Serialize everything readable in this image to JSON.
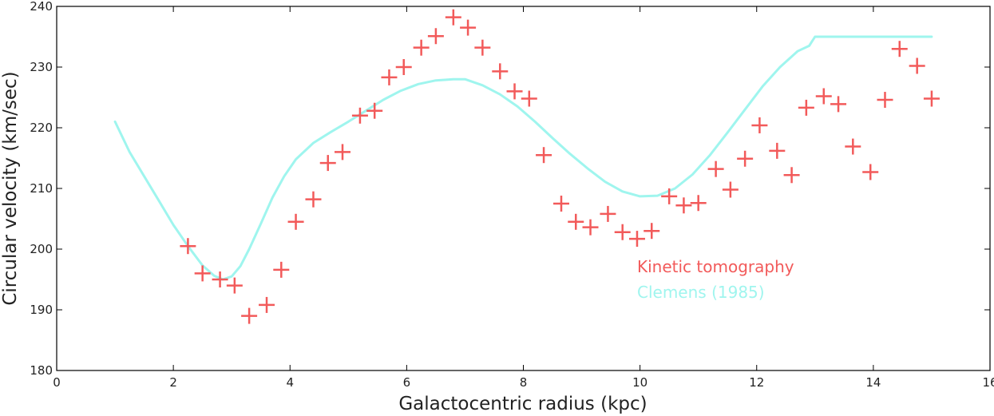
{
  "chart_data": {
    "type": "scatter",
    "title": "",
    "xlabel": "Galactocentric radius (kpc)",
    "ylabel": "Circular velocity (km/sec)",
    "xlim": [
      0,
      16
    ],
    "ylim": [
      180,
      240
    ],
    "xticks": [
      0,
      2,
      4,
      6,
      8,
      10,
      12,
      14,
      16
    ],
    "yticks": [
      180,
      190,
      200,
      210,
      220,
      230,
      240
    ],
    "grid": false,
    "legend_placement": "center-right",
    "series": [
      {
        "name": "Kinetic tomography",
        "kind": "scatter",
        "marker": "plus",
        "color": "#f25a5a",
        "x": [
          2.25,
          2.5,
          2.8,
          3.05,
          3.3,
          3.6,
          3.85,
          4.1,
          4.4,
          4.65,
          4.9,
          5.2,
          5.45,
          5.7,
          5.95,
          6.25,
          6.5,
          6.8,
          7.05,
          7.3,
          7.6,
          7.85,
          8.1,
          8.35,
          8.65,
          8.9,
          9.15,
          9.45,
          9.7,
          9.95,
          10.2,
          10.5,
          10.75,
          11.0,
          11.3,
          11.55,
          11.8,
          12.05,
          12.35,
          12.6,
          12.85,
          13.15,
          13.4,
          13.65,
          13.95,
          14.2,
          14.45,
          14.75,
          15.0
        ],
        "y": [
          200.5,
          196.0,
          195.0,
          194.0,
          189.0,
          190.8,
          196.6,
          204.5,
          208.2,
          214.2,
          216.0,
          222.0,
          222.8,
          228.3,
          230.0,
          233.2,
          235.1,
          238.2,
          236.5,
          233.2,
          229.3,
          226.0,
          224.8,
          215.5,
          207.5,
          204.5,
          203.6,
          205.8,
          202.8,
          201.7,
          203.0,
          208.7,
          207.2,
          207.6,
          213.2,
          209.8,
          214.9,
          220.4,
          216.2,
          212.2,
          223.3,
          225.2,
          223.9,
          216.9,
          212.7,
          224.6,
          233.0,
          230.2,
          224.8
        ]
      },
      {
        "name": "Clemens (1985)",
        "kind": "line",
        "color": "#9ff5ee",
        "x": [
          1.0,
          1.1,
          1.25,
          1.5,
          1.75,
          2.0,
          2.25,
          2.5,
          2.7,
          2.85,
          3.0,
          3.15,
          3.3,
          3.5,
          3.7,
          3.9,
          4.1,
          4.4,
          4.7,
          5.0,
          5.3,
          5.6,
          5.9,
          6.2,
          6.5,
          6.8,
          7.0,
          7.3,
          7.6,
          7.9,
          8.2,
          8.5,
          8.8,
          9.1,
          9.4,
          9.7,
          10.0,
          10.3,
          10.6,
          10.9,
          11.2,
          11.5,
          11.8,
          12.1,
          12.4,
          12.7,
          12.9,
          13.0,
          13.5,
          14.0,
          14.5,
          15.0
        ],
        "y": [
          221.0,
          219.0,
          216.0,
          212.0,
          208.0,
          204.0,
          200.5,
          197.3,
          195.6,
          195.0,
          195.5,
          197.2,
          200.0,
          204.2,
          208.5,
          212.0,
          214.8,
          217.5,
          219.3,
          221.0,
          222.8,
          224.6,
          226.1,
          227.2,
          227.8,
          228.0,
          228.0,
          227.0,
          225.5,
          223.5,
          221.0,
          218.3,
          215.7,
          213.3,
          211.1,
          209.5,
          208.7,
          208.8,
          210.0,
          212.3,
          215.5,
          219.2,
          223.0,
          226.8,
          230.0,
          232.6,
          233.5,
          235.0,
          235.0,
          235.0,
          235.0,
          235.0
        ]
      }
    ]
  }
}
